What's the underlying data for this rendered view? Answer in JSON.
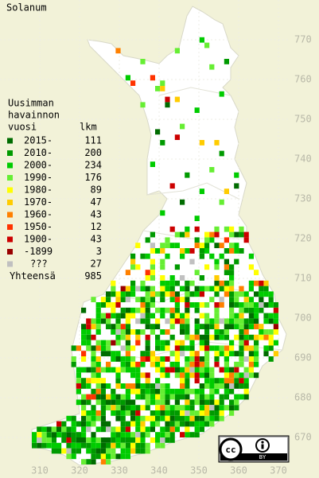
{
  "map": {
    "title": "Solanum",
    "legend": {
      "header": [
        "Uusimman",
        "havainnon",
        "vuosi"
      ],
      "count_header": "lkm",
      "rows": [
        {
          "label": "2015-",
          "count": 111,
          "color": "#006c00"
        },
        {
          "label": "2010-",
          "count": 200,
          "color": "#009a00"
        },
        {
          "label": "2000-",
          "count": 234,
          "color": "#00cc00"
        },
        {
          "label": "1990-",
          "count": 176,
          "color": "#66ee33"
        },
        {
          "label": "1980-",
          "count": 89,
          "color": "#ffff00"
        },
        {
          "label": "1970-",
          "count": 47,
          "color": "#ffcc00"
        },
        {
          "label": "1960-",
          "count": 43,
          "color": "#ff8000"
        },
        {
          "label": "1950-",
          "count": 12,
          "color": "#ff3300"
        },
        {
          "label": "1900-",
          "count": 43,
          "color": "#cc0000"
        },
        {
          "label": "-1899",
          "count": 3,
          "color": "#990000"
        },
        {
          "label": "???",
          "count": 27,
          "color": "#c0c0c0"
        }
      ],
      "total_label": "Yhteensä",
      "total": 985
    },
    "xlim": [
      300,
      380
    ],
    "ylim": [
      660,
      780
    ],
    "xticks": [
      310,
      320,
      330,
      340,
      350,
      360,
      370
    ],
    "yticks": [
      670,
      680,
      690,
      700,
      710,
      720,
      730,
      740,
      750,
      760,
      770
    ],
    "license": {
      "cc": "cc",
      "by": "BY"
    }
  }
}
